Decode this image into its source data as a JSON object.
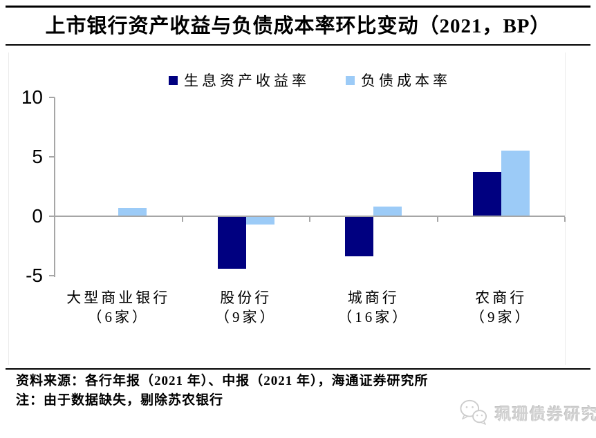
{
  "header": {
    "title": "上市银行资产收益与负债成本率环比变动（2021，BP）"
  },
  "legend": {
    "items": [
      {
        "label": "生息资产收益率",
        "color": "#000080"
      },
      {
        "label": "负债成本率",
        "color": "#9ccbf7"
      }
    ]
  },
  "chart_data": {
    "type": "bar",
    "title": "上市银行资产收益与负债成本率环比变动（2021，BP）",
    "unit": "BP",
    "categories": [
      "大型商业银行",
      "股份行",
      "城商行",
      "农商行"
    ],
    "category_sublabels": [
      "（6家）",
      "（9家）",
      "（16家）",
      "（9家）"
    ],
    "series": [
      {
        "name": "生息资产收益率",
        "color": "#000080",
        "values": [
          0,
          -4.4,
          -3.4,
          3.7
        ]
      },
      {
        "name": "负债成本率",
        "color": "#9ccbf7",
        "values": [
          0.7,
          -0.7,
          0.8,
          5.5
        ]
      }
    ],
    "yticks": [
      10,
      5,
      0,
      -5
    ],
    "ylim": [
      -5,
      10
    ],
    "grid": false,
    "legend_position": "top-center",
    "axis_color": "#a6a6a6"
  },
  "footer": {
    "source": "资料来源：各行年报（2021 年）、中报（2021 年），海通证券研究所",
    "note": "注：由于数据缺失，剔除苏农银行"
  },
  "watermark": {
    "icon": "wechat-chat-bubbles-icon",
    "text": "珮珊债券研究"
  }
}
